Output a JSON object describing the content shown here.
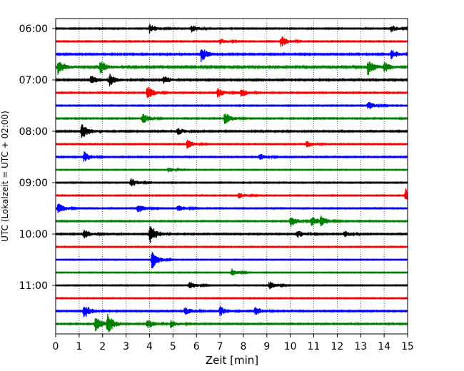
{
  "chart_data": {
    "type": "line",
    "title": "",
    "xlabel": "Zeit  [min]",
    "ylabel": "UTC (Lokalzeit = UTC + 02:00)",
    "xlim": [
      0,
      15
    ],
    "x_ticks": [
      0,
      1,
      2,
      3,
      4,
      5,
      6,
      7,
      8,
      9,
      10,
      11,
      12,
      13,
      14,
      15
    ],
    "x_tick_labels": [
      "0",
      "1",
      "2",
      "3",
      "4",
      "5",
      "6",
      "7",
      "8",
      "9",
      "10",
      "11",
      "12",
      "13",
      "14",
      "15"
    ],
    "y_tick_labels": [
      "06:00",
      "07:00",
      "08:00",
      "09:00",
      "10:00",
      "11:00"
    ],
    "y_tick_trace_index": [
      0,
      4,
      8,
      12,
      16,
      20
    ],
    "grid": "vertical dotted at each minute",
    "trace_minutes": 15,
    "trace_color_cycle": [
      "#000000",
      "#ff0000",
      "#0000ff",
      "#008000"
    ],
    "traces": [
      {
        "start": "06:00",
        "color": "#000000",
        "noise": 0.55,
        "events": [
          {
            "t": 4.0,
            "amp": 1.6
          },
          {
            "t": 5.8,
            "amp": 1.3
          },
          {
            "t": 14.3,
            "amp": 1.2
          }
        ]
      },
      {
        "start": "06:15",
        "color": "#ff0000",
        "noise": 0.5,
        "events": [
          {
            "t": 9.6,
            "amp": 2.0
          },
          {
            "t": 7.0,
            "amp": 1.0
          }
        ]
      },
      {
        "start": "06:30",
        "color": "#0000ff",
        "noise": 0.7,
        "events": [
          {
            "t": 6.2,
            "amp": 2.6
          },
          {
            "t": 14.3,
            "amp": 1.6
          }
        ]
      },
      {
        "start": "06:45",
        "color": "#008000",
        "noise": 0.9,
        "events": [
          {
            "t": 0.1,
            "amp": 2.4
          },
          {
            "t": 1.9,
            "amp": 2.2
          },
          {
            "t": 13.3,
            "amp": 2.7
          },
          {
            "t": 14.0,
            "amp": 1.8
          }
        ]
      },
      {
        "start": "07:00",
        "color": "#000000",
        "noise": 0.7,
        "events": [
          {
            "t": 1.5,
            "amp": 1.6
          },
          {
            "t": 2.3,
            "amp": 2.0
          },
          {
            "t": 4.6,
            "amp": 1.4
          }
        ]
      },
      {
        "start": "07:15",
        "color": "#ff0000",
        "noise": 0.55,
        "events": [
          {
            "t": 3.9,
            "amp": 2.4
          },
          {
            "t": 6.9,
            "amp": 1.6
          },
          {
            "t": 7.9,
            "amp": 1.6
          }
        ]
      },
      {
        "start": "07:30",
        "color": "#0000ff",
        "noise": 0.5,
        "events": [
          {
            "t": 13.3,
            "amp": 1.5
          }
        ]
      },
      {
        "start": "07:45",
        "color": "#008000",
        "noise": 0.55,
        "events": [
          {
            "t": 3.7,
            "amp": 1.8
          },
          {
            "t": 7.2,
            "amp": 2.0
          }
        ]
      },
      {
        "start": "08:00",
        "color": "#000000",
        "noise": 0.65,
        "events": [
          {
            "t": 1.1,
            "amp": 3.0
          },
          {
            "t": 5.2,
            "amp": 1.2
          }
        ]
      },
      {
        "start": "08:15",
        "color": "#ff0000",
        "noise": 0.5,
        "events": [
          {
            "t": 5.6,
            "amp": 1.6
          },
          {
            "t": 10.7,
            "amp": 1.2
          }
        ]
      },
      {
        "start": "08:30",
        "color": "#0000ff",
        "noise": 0.55,
        "events": [
          {
            "t": 1.2,
            "amp": 1.8
          },
          {
            "t": 8.7,
            "amp": 1.1
          }
        ]
      },
      {
        "start": "08:45",
        "color": "#008000",
        "noise": 0.4,
        "events": [
          {
            "t": 4.8,
            "amp": 0.9
          }
        ]
      },
      {
        "start": "09:00",
        "color": "#000000",
        "noise": 0.5,
        "events": [
          {
            "t": 3.2,
            "amp": 1.5
          }
        ]
      },
      {
        "start": "09:15",
        "color": "#ff0000",
        "noise": 0.45,
        "events": [
          {
            "t": 14.9,
            "amp": 2.4
          },
          {
            "t": 7.8,
            "amp": 0.9
          }
        ]
      },
      {
        "start": "09:30",
        "color": "#0000ff",
        "noise": 0.5,
        "events": [
          {
            "t": 0.1,
            "amp": 1.8
          },
          {
            "t": 3.5,
            "amp": 1.6
          },
          {
            "t": 5.2,
            "amp": 1.2
          }
        ]
      },
      {
        "start": "09:45",
        "color": "#008000",
        "noise": 0.55,
        "events": [
          {
            "t": 10.0,
            "amp": 1.9
          },
          {
            "t": 10.9,
            "amp": 1.7
          },
          {
            "t": 11.3,
            "amp": 1.5
          }
        ]
      },
      {
        "start": "10:00",
        "color": "#000000",
        "noise": 0.6,
        "events": [
          {
            "t": 1.2,
            "amp": 1.5
          },
          {
            "t": 4.0,
            "amp": 3.6
          },
          {
            "t": 10.3,
            "amp": 1.3
          },
          {
            "t": 12.3,
            "amp": 1.1
          }
        ]
      },
      {
        "start": "10:15",
        "color": "#ff0000",
        "noise": 0.45,
        "events": []
      },
      {
        "start": "10:30",
        "color": "#0000ff",
        "noise": 0.4,
        "events": [
          {
            "t": 4.1,
            "amp": 3.2
          }
        ]
      },
      {
        "start": "10:45",
        "color": "#008000",
        "noise": 0.4,
        "events": [
          {
            "t": 7.5,
            "amp": 1.3
          }
        ]
      },
      {
        "start": "11:00",
        "color": "#000000",
        "noise": 0.45,
        "events": [
          {
            "t": 5.7,
            "amp": 1.4
          },
          {
            "t": 9.1,
            "amp": 1.5
          }
        ]
      },
      {
        "start": "11:15",
        "color": "#ff0000",
        "noise": 0.45,
        "events": []
      },
      {
        "start": "11:30",
        "color": "#0000ff",
        "noise": 0.6,
        "events": [
          {
            "t": 1.2,
            "amp": 2.6
          },
          {
            "t": 5.5,
            "amp": 1.4
          },
          {
            "t": 7.0,
            "amp": 1.7
          },
          {
            "t": 8.5,
            "amp": 1.5
          }
        ]
      },
      {
        "start": "11:45",
        "color": "#008000",
        "noise": 0.6,
        "events": [
          {
            "t": 1.7,
            "amp": 2.6
          },
          {
            "t": 2.2,
            "amp": 3.2
          },
          {
            "t": 3.9,
            "amp": 1.6
          },
          {
            "t": 4.9,
            "amp": 1.4
          }
        ]
      }
    ]
  }
}
